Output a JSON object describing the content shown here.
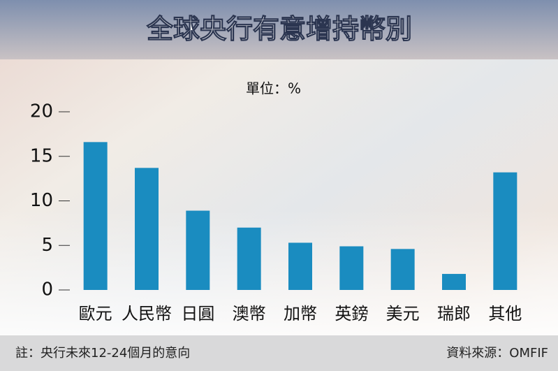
{
  "chart_data": {
    "type": "bar",
    "title": "全球央行有意增持幣別",
    "unit_label": "單位：%",
    "categories": [
      "歐元",
      "人民幣",
      "日圓",
      "澳幣",
      "加幣",
      "英鎊",
      "美元",
      "瑞郎",
      "其他"
    ],
    "values": [
      16.6,
      13.7,
      8.9,
      7.0,
      5.3,
      4.9,
      4.6,
      1.8,
      13.2
    ],
    "color": "#1a8cc0",
    "ylim": [
      0,
      20
    ],
    "yticks": [
      0,
      5,
      10,
      15,
      20
    ],
    "grid": false,
    "note": "註：央行未來12-24個月的意向",
    "source": "資料來源：OMFIF"
  }
}
